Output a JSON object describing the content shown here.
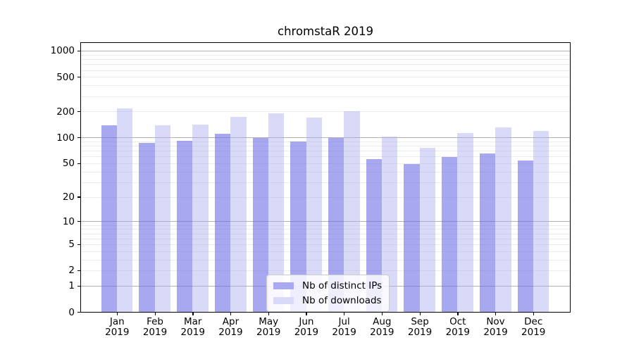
{
  "chart_data": {
    "type": "bar",
    "title": "chromstaR 2019",
    "categories": [
      "Jan",
      "Feb",
      "Mar",
      "Apr",
      "May",
      "Jun",
      "Jul",
      "Aug",
      "Sep",
      "Oct",
      "Nov",
      "Dec"
    ],
    "year": "2019",
    "series": [
      {
        "name": "Nb of distinct IPs",
        "color": "#a9a9f1",
        "fill": "rgba(110,110,232,0.6)",
        "values": [
          138,
          86,
          92,
          110,
          98,
          89,
          99,
          56,
          49,
          59,
          65,
          54
        ]
      },
      {
        "name": "Nb of downloads",
        "color": "#d9d9f8",
        "fill": "rgba(170,170,240,0.45)",
        "values": [
          218,
          139,
          141,
          173,
          189,
          169,
          200,
          103,
          75,
          113,
          130,
          119
        ]
      }
    ],
    "yticks": [
      0,
      1,
      2,
      5,
      10,
      20,
      50,
      100,
      200,
      500,
      1000
    ],
    "yscale": "log1p",
    "ylim": [
      0,
      1000
    ],
    "xlabel": "",
    "ylabel": "",
    "grid": true,
    "grid_major_color": "#b0b0b0",
    "grid_minor_color": "#ececec",
    "legend_position": "lower-center",
    "background": "#ffffff"
  }
}
